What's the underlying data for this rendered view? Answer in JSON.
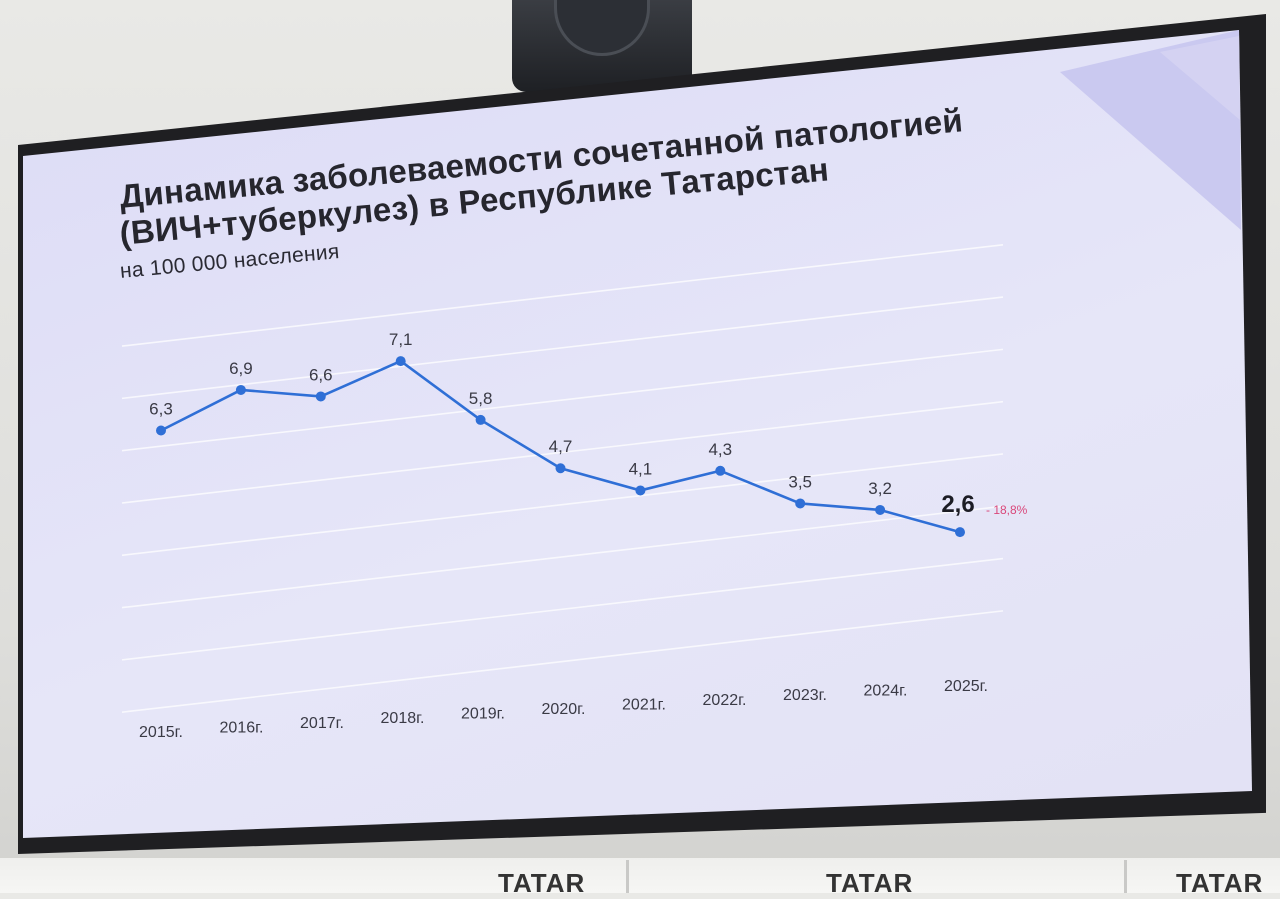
{
  "slide": {
    "title_line1": "Динамика заболеваемости сочетанной патологией",
    "title_line2": "(ВИЧ+туберкулез) в Республике Татарстан",
    "subtitle": "на 100 000 населения"
  },
  "signs": [
    "TATAR",
    "TATAR",
    "TATAR"
  ],
  "colors": {
    "line": "#2f6fd6",
    "marker": "#2f6fd6",
    "change": "#d9477a",
    "gridline": "#ffffff",
    "slide_bg": "#e3e2f6"
  },
  "chart_data": {
    "type": "line",
    "title": "Динамика заболеваемости сочетанной патологией (ВИЧ+туберкулез) в Республике Татарстан",
    "subtitle": "на 100 000 населения",
    "categories": [
      "2015г.",
      "2016г.",
      "2017г.",
      "2018г.",
      "2019г.",
      "2020г.",
      "2021г.",
      "2022г.",
      "2023г.",
      "2024г.",
      "2025г."
    ],
    "series": [
      {
        "values": [
          6.3,
          6.9,
          6.6,
          7.1,
          5.8,
          4.7,
          4.1,
          4.3,
          3.5,
          3.2,
          2.6
        ]
      }
    ],
    "data_labels": [
      "6,3",
      "6,9",
      "6,6",
      "7,1",
      "5,8",
      "4,7",
      "4,1",
      "4,3",
      "3,5",
      "3,2",
      "2,6"
    ],
    "annotation": "- 18,8%",
    "grid": true,
    "legend": "none"
  }
}
